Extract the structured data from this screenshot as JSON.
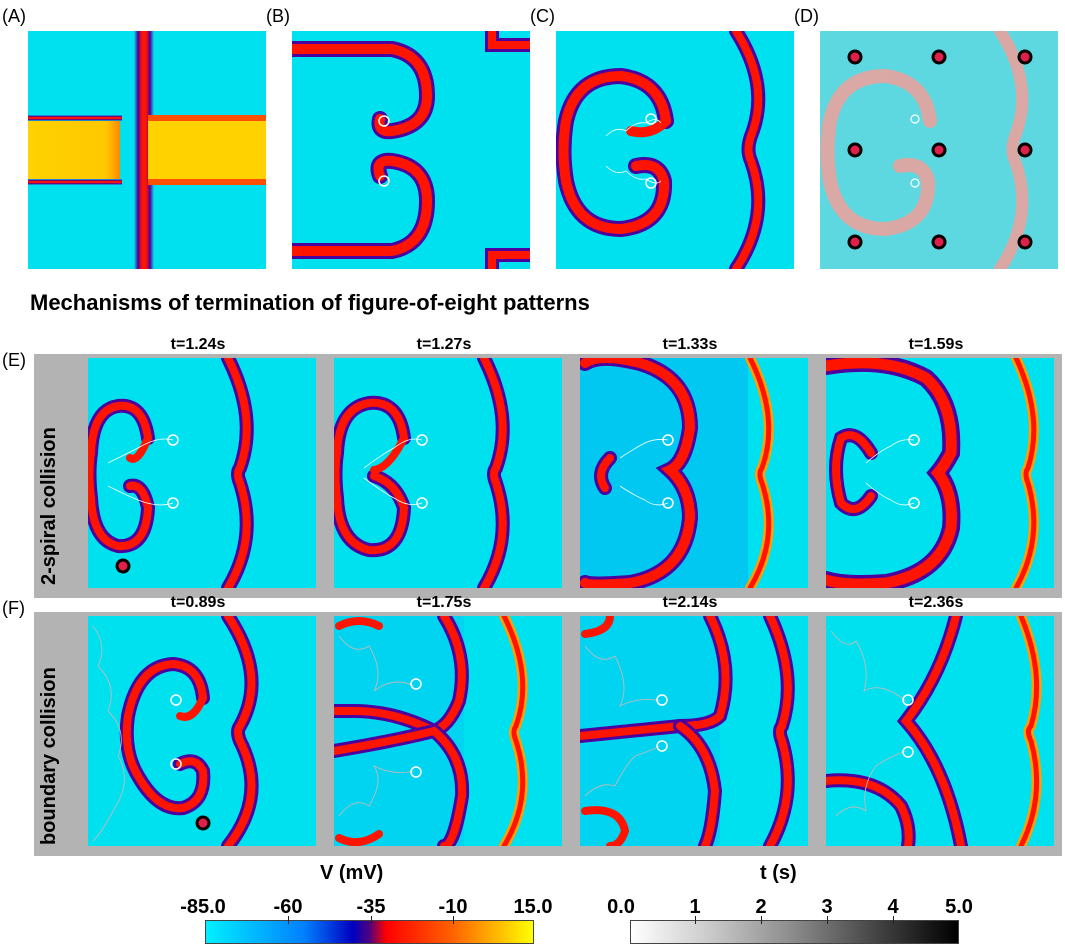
{
  "panel_labels": {
    "a": "(A)",
    "b": "(B)",
    "c": "(C)",
    "d": "(D)",
    "e": "(E)",
    "f": "(F)"
  },
  "heading": "Mechanisms of termination of figure-of-eight patterns",
  "row_e": {
    "label": "2-spiral collision",
    "times": [
      "t=1.24s",
      "t=1.27s",
      "t=1.33s",
      "t=1.59s"
    ]
  },
  "row_f": {
    "label": "boundary collision",
    "times": [
      "t=0.89s",
      "t=1.75s",
      "t=2.14s",
      "t=2.36s"
    ]
  },
  "colorbar_v": {
    "title": "V (mV)",
    "ticks": [
      "-85.0",
      "-60",
      "-35",
      "-10",
      "15.0"
    ]
  },
  "colorbar_t": {
    "title": "t (s)",
    "ticks": [
      "0.0",
      "1",
      "2",
      "3",
      "4",
      "5.0"
    ]
  },
  "colors": {
    "tissue": "#00e1f0",
    "wave": "#ff1400",
    "wave_edge": "#4b00a0",
    "plateau": "#ffd200",
    "frame": "#b3b3b3"
  }
}
